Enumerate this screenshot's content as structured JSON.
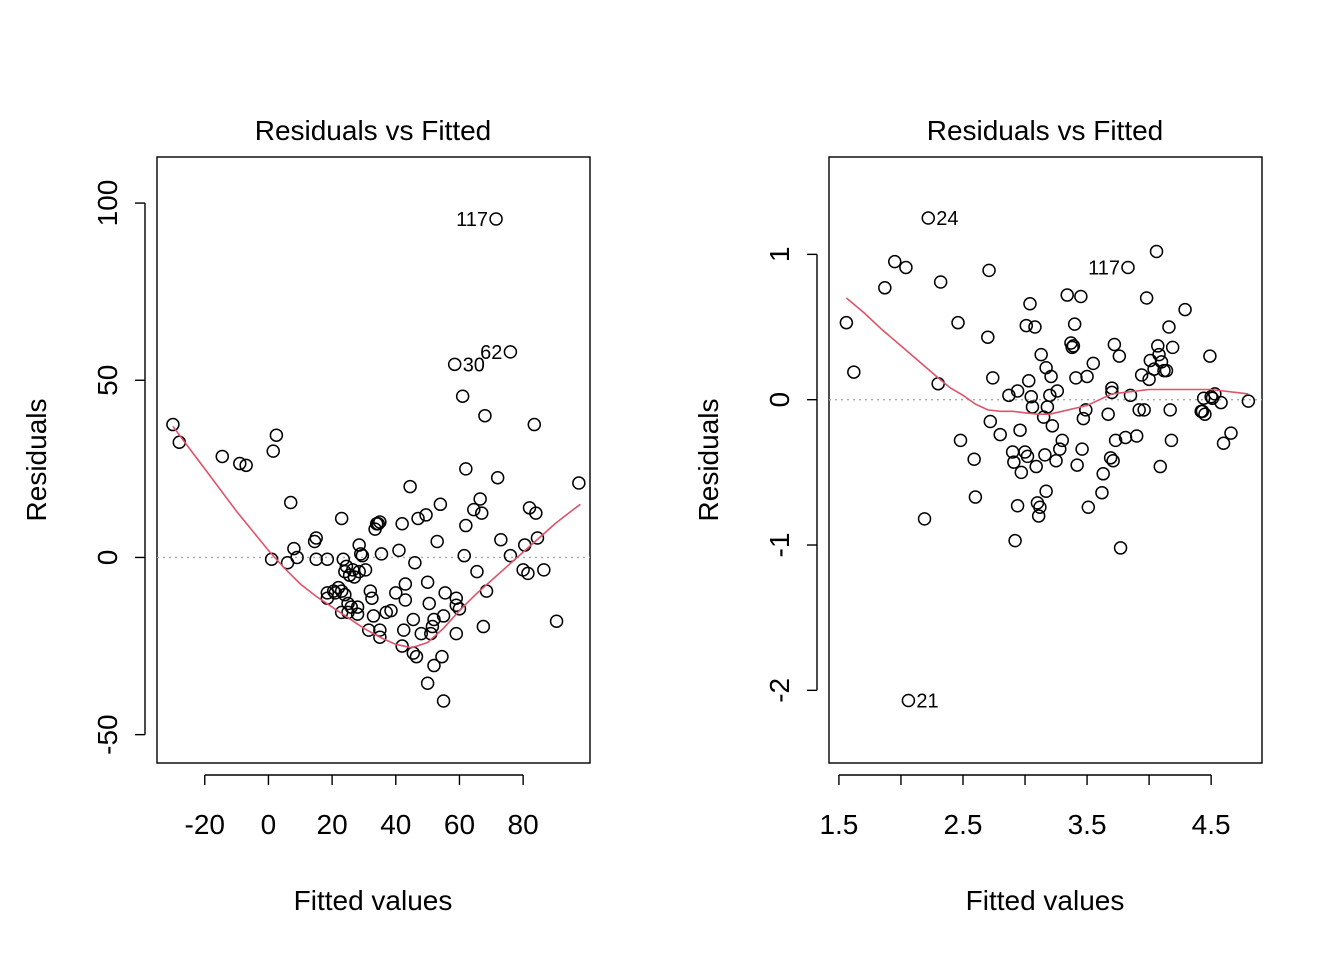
{
  "colors": {
    "smooth": "#DF536B",
    "points": "#000000",
    "zero_line": "#A8A8A8"
  },
  "chart_data": [
    {
      "type": "scatter",
      "title": "Residuals vs Fitted",
      "xlabel": "Fitted values",
      "ylabel": "Residuals",
      "xlim": [
        -35,
        101
      ],
      "ylim": [
        -58,
        113
      ],
      "xticks": [
        -20,
        0,
        20,
        40,
        60,
        80
      ],
      "xtick_labels": [
        "-20",
        "0",
        "20",
        "40",
        "60",
        "80"
      ],
      "yticks": [
        -50,
        0,
        50,
        100
      ],
      "ytick_labels": [
        "-50",
        "0",
        "50",
        "100"
      ],
      "reference_line": 0,
      "points": [
        [
          -30,
          37.5
        ],
        [
          -28,
          32.5
        ],
        [
          -14.5,
          28.5
        ],
        [
          -9,
          26.5
        ],
        [
          -7,
          26
        ],
        [
          1.5,
          30
        ],
        [
          2.5,
          34.5
        ],
        [
          1,
          -0.5
        ],
        [
          6,
          -1.5
        ],
        [
          7,
          15.5
        ],
        [
          8,
          2.5
        ],
        [
          9,
          0
        ],
        [
          14.5,
          4.5
        ],
        [
          15,
          5.5
        ],
        [
          15,
          -0.5
        ],
        [
          18.5,
          -0.5
        ],
        [
          18.5,
          -10
        ],
        [
          18.5,
          -11.5
        ],
        [
          20.5,
          -9.5
        ],
        [
          21,
          -10
        ],
        [
          22,
          -8.5
        ],
        [
          23,
          -15.5
        ],
        [
          23,
          -9.5
        ],
        [
          23,
          11
        ],
        [
          23.5,
          -0.5
        ],
        [
          24,
          -10.5
        ],
        [
          24,
          -4
        ],
        [
          24.5,
          -2.5
        ],
        [
          25,
          -13
        ],
        [
          25,
          -15.5
        ],
        [
          25.5,
          -5
        ],
        [
          26,
          -14
        ],
        [
          26.5,
          -3.5
        ],
        [
          27,
          -5.5
        ],
        [
          28,
          -16
        ],
        [
          28,
          -14
        ],
        [
          28.5,
          -4
        ],
        [
          28.5,
          3.5
        ],
        [
          29,
          1
        ],
        [
          29.5,
          0.5
        ],
        [
          30.5,
          -3.5
        ],
        [
          31.5,
          -20.5
        ],
        [
          32,
          -9.5
        ],
        [
          32.5,
          -11.5
        ],
        [
          33,
          -16.5
        ],
        [
          33.5,
          8
        ],
        [
          34,
          9.5
        ],
        [
          34.5,
          9.5
        ],
        [
          35,
          10
        ],
        [
          35,
          -20.5
        ],
        [
          35,
          -22.5
        ],
        [
          35.5,
          1
        ],
        [
          37,
          -15.5
        ],
        [
          38.5,
          -15
        ],
        [
          40,
          -10
        ],
        [
          41,
          2
        ],
        [
          42,
          -25
        ],
        [
          42,
          9.5
        ],
        [
          42.5,
          -20.5
        ],
        [
          43,
          -12
        ],
        [
          43,
          -7.5
        ],
        [
          44.5,
          20
        ],
        [
          45.5,
          -17.5
        ],
        [
          45.5,
          -27
        ],
        [
          46,
          -1.5
        ],
        [
          46.5,
          -28
        ],
        [
          47,
          11
        ],
        [
          48,
          -21.5
        ],
        [
          49.5,
          12
        ],
        [
          50,
          -35.5
        ],
        [
          50,
          -7
        ],
        [
          50.5,
          -13
        ],
        [
          51,
          -21.5
        ],
        [
          51.5,
          -19.5
        ],
        [
          52,
          -17.5
        ],
        [
          52,
          -30.5
        ],
        [
          53,
          4.5
        ],
        [
          54,
          15
        ],
        [
          54.5,
          -28
        ],
        [
          55,
          -40.5
        ],
        [
          55,
          -16.5
        ],
        [
          55.5,
          -10
        ],
        [
          58.5,
          54.5
        ],
        [
          59,
          -11.5
        ],
        [
          59,
          -13.5
        ],
        [
          59,
          -21.5
        ],
        [
          60,
          -14.5
        ],
        [
          61,
          45.5
        ],
        [
          61.5,
          0.5
        ],
        [
          62,
          25
        ],
        [
          62,
          9
        ],
        [
          64.5,
          13.5
        ],
        [
          65.5,
          -4
        ],
        [
          66.5,
          16.5
        ],
        [
          67,
          12.5
        ],
        [
          67.5,
          -19.5
        ],
        [
          68,
          40
        ],
        [
          68.5,
          -9.5
        ],
        [
          71.5,
          95.5
        ],
        [
          72,
          22.5
        ],
        [
          73,
          5
        ],
        [
          76,
          58
        ],
        [
          76,
          0.5
        ],
        [
          80,
          -3.5
        ],
        [
          80.5,
          3.5
        ],
        [
          81.5,
          -4.5
        ],
        [
          82,
          14
        ],
        [
          83.5,
          37.5
        ],
        [
          84,
          12.5
        ],
        [
          84.5,
          5.5
        ],
        [
          86.5,
          -3.5
        ],
        [
          90.5,
          -18
        ],
        [
          97.5,
          21
        ]
      ],
      "annotations": [
        {
          "label": "117",
          "x": 71.5,
          "y": 95.5,
          "side": "left"
        },
        {
          "label": "62",
          "x": 76,
          "y": 58,
          "side": "left"
        },
        {
          "label": "30",
          "x": 58.5,
          "y": 54.5,
          "side": "right"
        }
      ],
      "smooth": [
        [
          -30,
          37
        ],
        [
          -25,
          31
        ],
        [
          -20,
          25
        ],
        [
          -15,
          19
        ],
        [
          -10,
          13
        ],
        [
          -5,
          7.5
        ],
        [
          0,
          2
        ],
        [
          5,
          -3
        ],
        [
          10,
          -7.5
        ],
        [
          15,
          -11
        ],
        [
          20,
          -14
        ],
        [
          25,
          -17
        ],
        [
          30,
          -20
        ],
        [
          35,
          -22.5
        ],
        [
          40,
          -24.5
        ],
        [
          45,
          -25.5
        ],
        [
          50,
          -24
        ],
        [
          55,
          -20
        ],
        [
          60,
          -15
        ],
        [
          65,
          -10.5
        ],
        [
          70,
          -6.5
        ],
        [
          75,
          -2.5
        ],
        [
          80,
          1.5
        ],
        [
          85,
          5.5
        ],
        [
          90,
          9.5
        ],
        [
          95,
          13
        ],
        [
          98,
          15
        ]
      ]
    },
    {
      "type": "scatter",
      "title": "Residuals vs Fitted",
      "xlabel": "Fitted values",
      "ylabel": "Residuals",
      "xlim": [
        1.42,
        4.91
      ],
      "ylim": [
        -2.5,
        1.67
      ],
      "xticks": [
        1.5,
        2.5,
        3.5,
        4.5
      ],
      "xtick_labels": [
        "1.5",
        "2.5",
        "3.5",
        "4.5"
      ],
      "xticks_unlabeled": [
        2.0,
        3.0,
        4.0
      ],
      "yticks": [
        -2,
        -1,
        0,
        1
      ],
      "ytick_labels": [
        "-2",
        "-1",
        "0",
        "1"
      ],
      "reference_line": 0,
      "points": [
        [
          1.56,
          0.53
        ],
        [
          1.62,
          0.19
        ],
        [
          1.87,
          0.77
        ],
        [
          1.95,
          0.95
        ],
        [
          2.04,
          0.91
        ],
        [
          2.22,
          1.25
        ],
        [
          2.19,
          -0.82
        ],
        [
          2.06,
          -2.07
        ],
        [
          2.3,
          0.11
        ],
        [
          2.32,
          0.81
        ],
        [
          2.46,
          0.53
        ],
        [
          2.48,
          -0.28
        ],
        [
          2.59,
          -0.41
        ],
        [
          2.6,
          -0.67
        ],
        [
          2.7,
          0.43
        ],
        [
          2.71,
          0.89
        ],
        [
          2.72,
          -0.15
        ],
        [
          2.74,
          0.15
        ],
        [
          2.8,
          -0.24
        ],
        [
          2.87,
          0.03
        ],
        [
          2.9,
          -0.36
        ],
        [
          2.91,
          -0.43
        ],
        [
          2.92,
          -0.97
        ],
        [
          2.94,
          -0.73
        ],
        [
          2.94,
          0.06
        ],
        [
          2.96,
          -0.21
        ],
        [
          2.97,
          -0.5
        ],
        [
          3.0,
          -0.36
        ],
        [
          3.01,
          0.51
        ],
        [
          3.02,
          -0.39
        ],
        [
          3.03,
          0.13
        ],
        [
          3.04,
          0.66
        ],
        [
          3.05,
          0.02
        ],
        [
          3.06,
          -0.05
        ],
        [
          3.08,
          0.5
        ],
        [
          3.09,
          -0.46
        ],
        [
          3.1,
          -0.71
        ],
        [
          3.11,
          -0.8
        ],
        [
          3.12,
          -0.74
        ],
        [
          3.13,
          0.31
        ],
        [
          3.15,
          -0.12
        ],
        [
          3.16,
          -0.38
        ],
        [
          3.17,
          -0.63
        ],
        [
          3.17,
          0.22
        ],
        [
          3.18,
          -0.05
        ],
        [
          3.2,
          0.03
        ],
        [
          3.21,
          0.16
        ],
        [
          3.22,
          -0.18
        ],
        [
          3.25,
          -0.42
        ],
        [
          3.26,
          0.06
        ],
        [
          3.28,
          -0.34
        ],
        [
          3.3,
          -0.28
        ],
        [
          3.34,
          0.72
        ],
        [
          3.37,
          0.39
        ],
        [
          3.38,
          0.36
        ],
        [
          3.39,
          0.37
        ],
        [
          3.4,
          0.52
        ],
        [
          3.41,
          0.15
        ],
        [
          3.42,
          -0.45
        ],
        [
          3.45,
          0.71
        ],
        [
          3.46,
          -0.34
        ],
        [
          3.47,
          -0.13
        ],
        [
          3.49,
          -0.07
        ],
        [
          3.5,
          0.16
        ],
        [
          3.51,
          -0.74
        ],
        [
          3.55,
          0.25
        ],
        [
          3.62,
          -0.64
        ],
        [
          3.63,
          -0.51
        ],
        [
          3.67,
          -0.1
        ],
        [
          3.69,
          -0.4
        ],
        [
          3.7,
          0.08
        ],
        [
          3.7,
          0.05
        ],
        [
          3.71,
          -0.42
        ],
        [
          3.72,
          0.38
        ],
        [
          3.73,
          -0.28
        ],
        [
          3.76,
          0.3
        ],
        [
          3.77,
          -1.02
        ],
        [
          3.81,
          -0.26
        ],
        [
          3.83,
          0.91
        ],
        [
          3.85,
          0.03
        ],
        [
          3.9,
          -0.25
        ],
        [
          3.92,
          -0.07
        ],
        [
          3.94,
          0.17
        ],
        [
          3.96,
          -0.07
        ],
        [
          3.98,
          0.7
        ],
        [
          4.0,
          0.14
        ],
        [
          4.01,
          0.27
        ],
        [
          4.04,
          0.21
        ],
        [
          4.06,
          1.02
        ],
        [
          4.07,
          0.37
        ],
        [
          4.08,
          0.31
        ],
        [
          4.09,
          -0.46
        ],
        [
          4.1,
          0.26
        ],
        [
          4.12,
          0.2
        ],
        [
          4.14,
          0.2
        ],
        [
          4.16,
          0.5
        ],
        [
          4.17,
          -0.07
        ],
        [
          4.18,
          -0.28
        ],
        [
          4.19,
          0.36
        ],
        [
          4.29,
          0.62
        ],
        [
          4.42,
          -0.08
        ],
        [
          4.43,
          -0.08
        ],
        [
          4.44,
          0.01
        ],
        [
          4.45,
          -0.1
        ],
        [
          4.49,
          0.3
        ],
        [
          4.5,
          0.02
        ],
        [
          4.51,
          0.01
        ],
        [
          4.53,
          0.04
        ],
        [
          4.58,
          -0.02
        ],
        [
          4.6,
          -0.3
        ],
        [
          4.66,
          -0.23
        ],
        [
          4.8,
          -0.01
        ]
      ],
      "annotations": [
        {
          "label": "24",
          "x": 2.22,
          "y": 1.25,
          "side": "right"
        },
        {
          "label": "117",
          "x": 3.83,
          "y": 0.91,
          "side": "left"
        },
        {
          "label": "21",
          "x": 2.06,
          "y": -2.07,
          "side": "right"
        }
      ],
      "smooth": [
        [
          1.56,
          0.7
        ],
        [
          1.7,
          0.6
        ],
        [
          1.85,
          0.48
        ],
        [
          2.0,
          0.37
        ],
        [
          2.15,
          0.26
        ],
        [
          2.3,
          0.15
        ],
        [
          2.4,
          0.08
        ],
        [
          2.5,
          0.03
        ],
        [
          2.6,
          -0.03
        ],
        [
          2.7,
          -0.07
        ],
        [
          2.8,
          -0.08
        ],
        [
          2.9,
          -0.08
        ],
        [
          3.0,
          -0.09
        ],
        [
          3.1,
          -0.1
        ],
        [
          3.2,
          -0.1
        ],
        [
          3.3,
          -0.08
        ],
        [
          3.4,
          -0.06
        ],
        [
          3.5,
          -0.04
        ],
        [
          3.6,
          0.0
        ],
        [
          3.7,
          0.04
        ],
        [
          3.8,
          0.05
        ],
        [
          3.9,
          0.06
        ],
        [
          4.0,
          0.07
        ],
        [
          4.1,
          0.07
        ],
        [
          4.2,
          0.07
        ],
        [
          4.3,
          0.07
        ],
        [
          4.4,
          0.07
        ],
        [
          4.5,
          0.07
        ],
        [
          4.6,
          0.06
        ],
        [
          4.7,
          0.05
        ],
        [
          4.8,
          0.04
        ]
      ]
    }
  ]
}
